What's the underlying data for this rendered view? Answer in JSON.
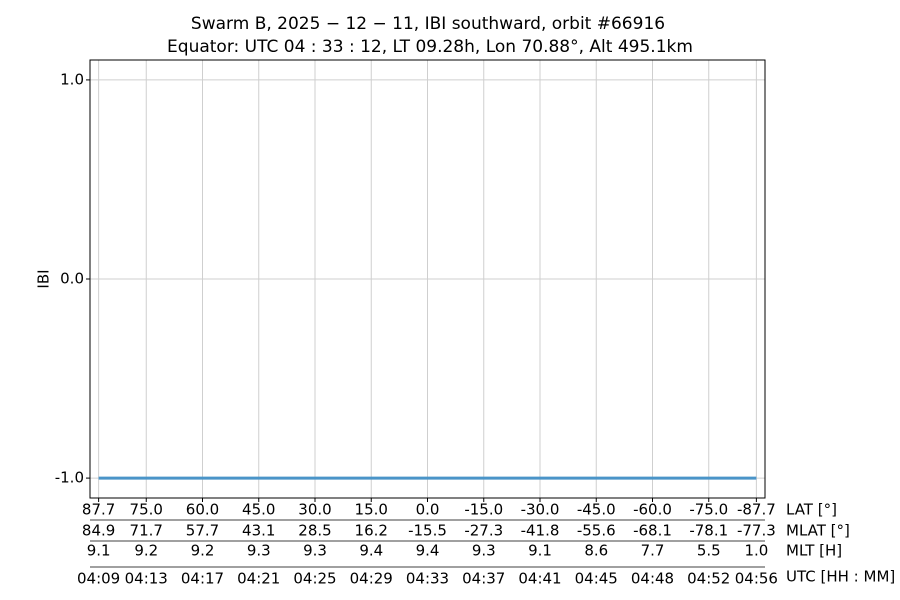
{
  "chart_data": {
    "type": "line",
    "title": "Swarm B,  2025 − 12 − 11,  IBI southward,  orbit #66916",
    "subtitle": "Equator:  UTC 04 : 33 : 12,  LT 09.28h,  Lon 70.88°,  Alt 495.1km",
    "y_label": "IBI",
    "xlim": [
      90,
      -90
    ],
    "ylim": [
      -1.1,
      1.1
    ],
    "yticks": [
      {
        "value": -1,
        "label": "-1.0"
      },
      {
        "value": 0,
        "label": "0.0"
      },
      {
        "value": 1,
        "label": "1.0"
      }
    ],
    "xticks": [
      87.7,
      {
        "value": 75,
        "label": "75.0"
      },
      {
        "value": 60,
        "label": "60.0"
      },
      {
        "value": 45,
        "label": "45.0"
      },
      {
        "value": 30,
        "label": "30.0"
      },
      {
        "value": 15,
        "label": "15.0"
      },
      {
        "value": 0,
        "label": "0.0"
      },
      {
        "value": -15,
        "label": "-15.0"
      },
      {
        "value": -30,
        "label": "-30.0"
      },
      {
        "value": -45,
        "label": "-45.0"
      },
      {
        "value": -60,
        "label": "-60.0"
      },
      {
        "value": -75,
        "label": "-75.0"
      },
      -87.7
    ],
    "xticks_name": "LAT [°]",
    "tick_rows": [
      {
        "name": "MLAT [°]",
        "labels": [
          "84.9",
          "71.7",
          "57.7",
          "43.1",
          "28.5",
          "16.2",
          "-15.5",
          "-27.3",
          "-41.8",
          "-55.6",
          "-68.1",
          "-78.1",
          "-77.3"
        ]
      },
      {
        "name": "MLT [H]",
        "labels": [
          "9.1",
          "9.2",
          "9.2",
          "9.3",
          "9.3",
          "9.4",
          "9.4",
          "9.3",
          "9.1",
          "8.6",
          "7.7",
          "5.5",
          "1.0"
        ]
      },
      {
        "name": "UTC [HH : MM]",
        "labels": [
          "04:09",
          "04:13",
          "04:17",
          "04:21",
          "04:25",
          "04:29",
          "04:33",
          "04:37",
          "04:41",
          "04:45",
          "04:48",
          "04:52",
          "04:56"
        ]
      }
    ],
    "grid": true,
    "series": [
      {
        "color": "#4a94c8",
        "x": [
          87.7,
          75,
          60,
          45,
          30,
          15,
          0,
          -15,
          -30,
          -45,
          -60,
          -75,
          -87.7
        ],
        "values": [
          -1,
          -1,
          -1,
          -1,
          -1,
          -1,
          -1,
          -1,
          -1,
          -1,
          -1,
          -1,
          -1
        ]
      }
    ]
  }
}
